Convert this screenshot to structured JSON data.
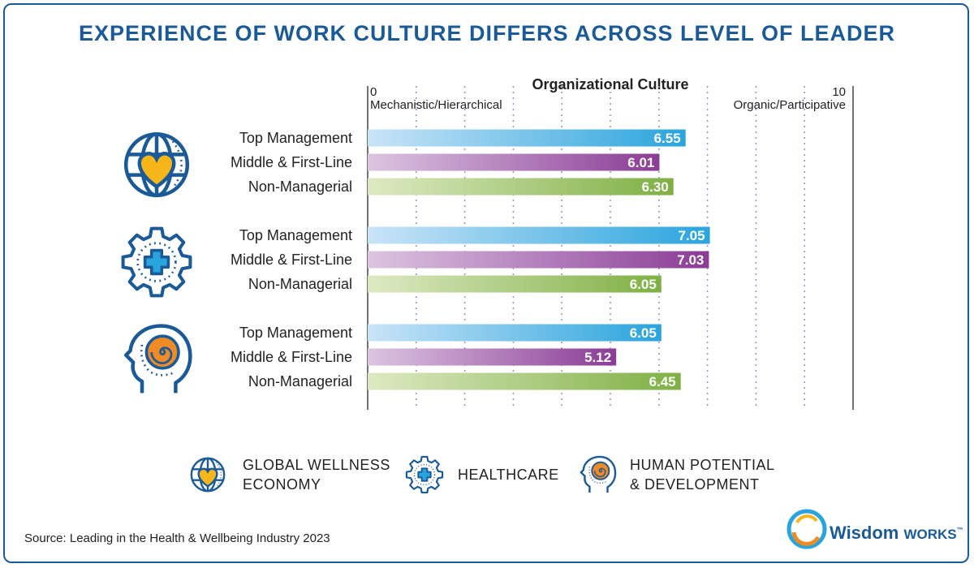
{
  "title": "EXPERIENCE OF WORK CULTURE DIFFERS ACROSS LEVEL OF LEADER",
  "chart_data": {
    "type": "bar",
    "orientation": "horizontal",
    "title": "Organizational Culture",
    "xlim": [
      0,
      10
    ],
    "xmin_label": "0",
    "xmax_label": "10",
    "xmin_desc": "Mechanistic/Hierarchical",
    "xmax_desc": "Organic/Participative",
    "grid": "dotted vertical",
    "groups": [
      {
        "icon": "globe-heart-icon",
        "bars": [
          {
            "label": "Top Management",
            "value": 6.55,
            "level": "top"
          },
          {
            "label": "Middle & First-Line",
            "value": 6.01,
            "level": "middle"
          },
          {
            "label": "Non-Managerial",
            "value": 6.3,
            "level": "non"
          }
        ]
      },
      {
        "icon": "gear-cross-icon",
        "bars": [
          {
            "label": "Top Management",
            "value": 7.05,
            "level": "top"
          },
          {
            "label": "Middle & First-Line",
            "value": 7.03,
            "level": "middle"
          },
          {
            "label": "Non-Managerial",
            "value": 6.05,
            "level": "non"
          }
        ]
      },
      {
        "icon": "head-spiral-icon",
        "bars": [
          {
            "label": "Top Management",
            "value": 6.05,
            "level": "top"
          },
          {
            "label": "Middle & First-Line",
            "value": 5.12,
            "level": "middle"
          },
          {
            "label": "Non-Managerial",
            "value": 6.45,
            "level": "non"
          }
        ]
      }
    ],
    "colors": {
      "top": [
        "#c9e4f7",
        "#2aa4dd"
      ],
      "middle": [
        "#dcc5e1",
        "#8b3c96"
      ],
      "non": [
        "#dde9c3",
        "#7fb043"
      ]
    }
  },
  "legend": [
    {
      "icon": "globe-heart-icon",
      "line1": "GLOBAL WELLNESS",
      "line2": "ECONOMY"
    },
    {
      "icon": "gear-cross-icon",
      "line1": "HEALTHCARE",
      "line2": ""
    },
    {
      "icon": "head-spiral-icon",
      "line1": "HUMAN POTENTIAL",
      "line2": "& DEVELOPMENT"
    }
  ],
  "source": "Source: Leading in the Health & Wellbeing Industry 2023",
  "logo": {
    "word1": "Wisdom",
    "word2": "WORKS",
    "tm": "™"
  }
}
